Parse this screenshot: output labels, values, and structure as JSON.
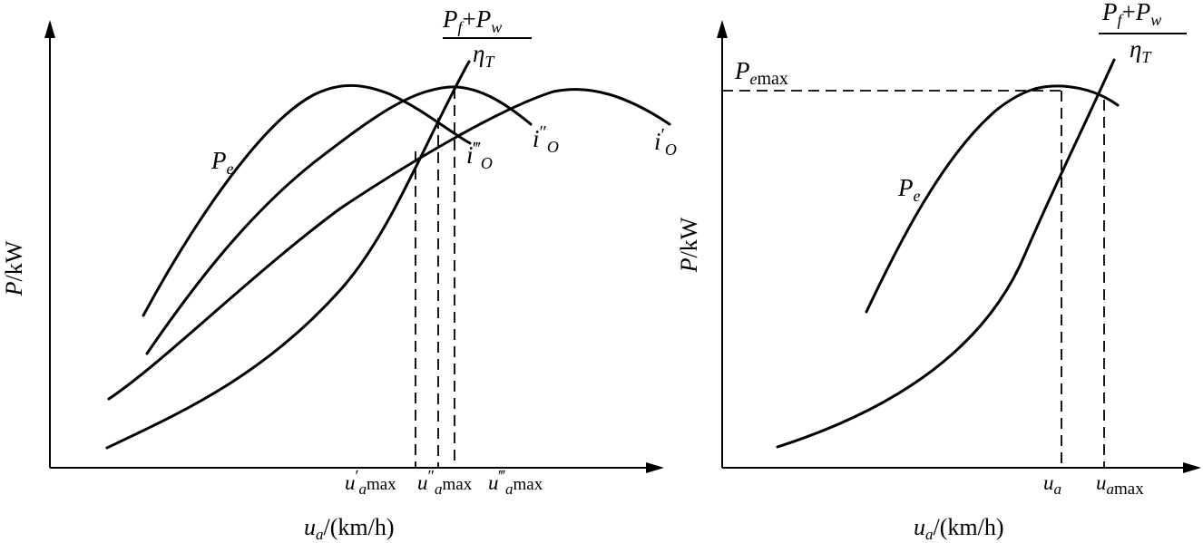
{
  "left_panel": {
    "y_axis_label": {
      "var": "P",
      "unit": "/kW"
    },
    "x_axis_label": {
      "var": "u",
      "sub": "a",
      "unit": "/(km/h)"
    },
    "resistance_label": {
      "num_p1": "P",
      "num_s1": "f",
      "num_plus": "+",
      "num_p2": "P",
      "num_s2": "w",
      "den": "η",
      "den_sub": "T"
    },
    "engine_label": {
      "var": "P",
      "sub": "e"
    },
    "ratio_labels": [
      {
        "var": "i",
        "prime": "′",
        "sub": "O"
      },
      {
        "var": "i",
        "prime": "″",
        "sub": "O"
      },
      {
        "var": "i",
        "prime": "‴",
        "sub": "O"
      }
    ],
    "tick_labels": [
      {
        "var": "u",
        "prime": "′",
        "sub": "a",
        "suffix": "max"
      },
      {
        "var": "u",
        "prime": "″",
        "sub": "a",
        "suffix": "max"
      },
      {
        "var": "u",
        "prime": "‴",
        "sub": "a",
        "suffix": "max"
      }
    ]
  },
  "right_panel": {
    "y_axis_label": {
      "var": "P",
      "unit": "/kW"
    },
    "x_axis_label": {
      "var": "u",
      "sub": "a",
      "unit": "/(km/h)"
    },
    "resistance_label": {
      "num_p1": "P",
      "num_s1": "f",
      "num_plus": "+",
      "num_p2": "P",
      "num_s2": "w",
      "den": "η",
      "den_sub": "T"
    },
    "engine_label": {
      "var": "P",
      "sub": "e"
    },
    "pemax_label": {
      "var": "P",
      "sub": "e",
      "suffix": "max"
    },
    "tick_labels": [
      {
        "var": "u",
        "sub": "a"
      },
      {
        "var": "u",
        "sub": "a",
        "suffix": "max"
      }
    ]
  }
}
